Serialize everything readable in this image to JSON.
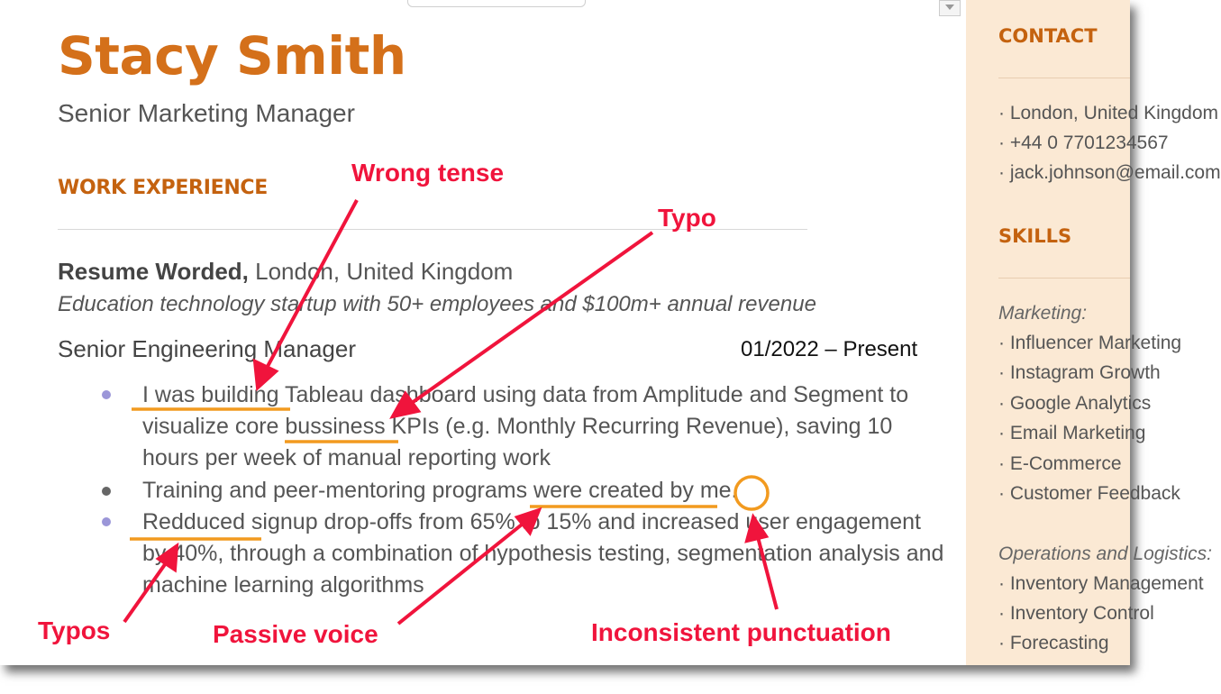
{
  "resume": {
    "name": "Stacy Smith",
    "title": "Senior Marketing Manager",
    "section_work": "WORK EXPERIENCE",
    "company_name": "Resume Worded,",
    "company_location": " London, United Kingdom",
    "company_description": "Education technology startup with 50+ employees and $100m+ annual revenue",
    "role": "Senior Engineering Manager",
    "dates": "01/2022 – Present",
    "bullets": [
      "I was building Tableau dashboard using data from Amplitude and Segment to visualize core bussiness KPIs (e.g. Monthly Recurring Revenue), saving 10 hours per week of manual reporting work",
      "Training and peer-mentoring programs were created by me.",
      "Redduced signup drop-offs from 65% to 15% and increased user engagement by 40%, through a combination of hypothesis testing, segmentation analysis and machine learning algorithms"
    ]
  },
  "sidebar": {
    "contact_heading": "CONTACT",
    "contact_items": [
      "London, United Kingdom",
      "+44 0 7701234567",
      "jack.johnson@email.com"
    ],
    "skills_heading": "SKILLS",
    "marketing_label": "Marketing:",
    "marketing_items": [
      "Influencer Marketing",
      "Instagram Growth",
      "Google Analytics",
      "Email Marketing",
      "E-Commerce",
      "Customer Feedback"
    ],
    "operations_label": "Operations and Logistics:",
    "operations_items": [
      "Inventory Management",
      "Inventory Control",
      "Forecasting"
    ]
  },
  "annotations": {
    "wrong_tense": "Wrong tense",
    "typo": "Typo",
    "typos": "Typos",
    "passive_voice": "Passive voice",
    "inconsistent_punctuation": "Inconsistent punctuation"
  },
  "colors": {
    "brand_orange": "#d4701a",
    "annotation_red": "#f0143c",
    "underline_orange": "#f29a1f",
    "sidebar_bg": "#fbe9d4"
  }
}
